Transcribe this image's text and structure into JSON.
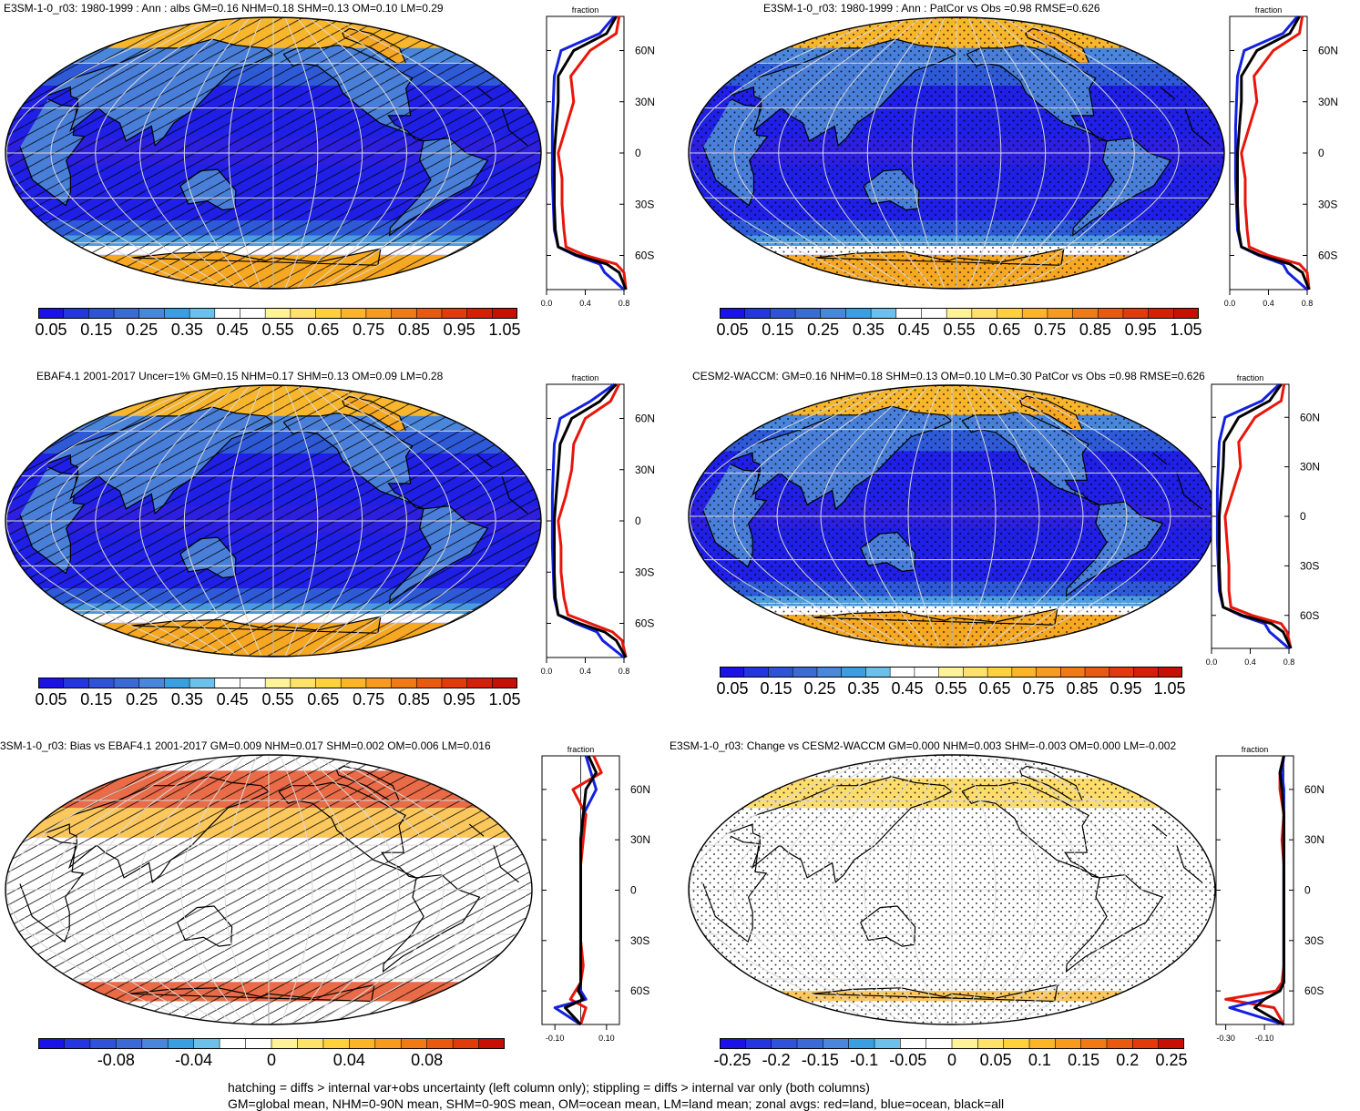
{
  "panels": [
    {
      "id": "p1",
      "title": "E3SM-1-0_r03: 1980-1999 : Ann : albs GM=0.16 NHM=0.18 SHM=0.13 OM=0.10 LM=0.29",
      "kind": "abs",
      "overlay": "hatch",
      "zonal_title": "fraction",
      "zonal_xticks": [
        "0.0",
        "0.4",
        "0.8"
      ]
    },
    {
      "id": "p2",
      "title": "E3SM-1-0_r03: 1980-1999 : Ann : PatCor vs Obs =0.98 RMSE=0.626",
      "kind": "abs",
      "overlay": "stipple",
      "zonal_title": "fraction",
      "zonal_xticks": [
        "0.0",
        "0.4",
        "0.8"
      ]
    },
    {
      "id": "p3",
      "title": "EBAF4.1 2001-2017 Uncer=1% GM=0.15 NHM=0.17 SHM=0.13 OM=0.09 LM=0.28",
      "kind": "abs",
      "overlay": "hatch",
      "zonal_title": "fraction",
      "zonal_xticks": [
        "0.0",
        "0.4",
        "0.8"
      ]
    },
    {
      "id": "p4",
      "title": "CESM2-WACCM: GM=0.16 NHM=0.18 SHM=0.13 OM=0.10 LM=0.30 PatCor vs Obs =0.98 RMSE=0.626",
      "kind": "abs",
      "overlay": "stipple",
      "zonal_title": "fraction",
      "zonal_xticks": [
        "0.0",
        "0.4",
        "0.8"
      ]
    },
    {
      "id": "p5",
      "title": "3SM-1-0_r03: Bias vs EBAF4.1 2001-2017 GM=0.009 NHM=0.017 SHM=0.002 OM=0.006 LM=0.016",
      "kind": "diff",
      "overlay": "hatch",
      "zonal_title": "fraction",
      "zonal_xticks": [
        "-0.10",
        "0.10"
      ]
    },
    {
      "id": "p6",
      "title": "E3SM-1-0_r03: Change vs CESM2-WACCM GM=0.000 NHM=0.003 SHM=-0.003 OM=0.000 LM=-0.002",
      "kind": "diff",
      "overlay": "stipple",
      "zonal_title": "fraction",
      "zonal_xticks": [
        "-0.30",
        "-0.10"
      ]
    }
  ],
  "lat_labels": [
    "60N",
    "30N",
    "0",
    "30S",
    "60S"
  ],
  "colorbars": {
    "abs": {
      "labels": [
        "0.05",
        "0.15",
        "0.25",
        "0.35",
        "0.45",
        "0.55",
        "0.65",
        "0.75",
        "0.85",
        "0.95",
        "1.05"
      ],
      "colors": [
        "#1b12e8",
        "#2436e0",
        "#2f52d8",
        "#3b6ad6",
        "#4a86db",
        "#3a9fe0",
        "#6cc0ea",
        "#ffffff",
        "#ffffff",
        "#fff39a",
        "#ffe26a",
        "#ffd23c",
        "#fbb527",
        "#f79a1e",
        "#f17a14",
        "#ea5a0e",
        "#e23a0a",
        "#d61f08",
        "#c80f06"
      ]
    },
    "bias": {
      "labels": [
        "-0.08",
        "-0.04",
        "0",
        "0.04",
        "0.08"
      ],
      "colors": [
        "#1b12e8",
        "#2436e0",
        "#2f52d8",
        "#3b6ad6",
        "#4a86db",
        "#3a9fe0",
        "#6cc0ea",
        "#ffffff",
        "#ffffff",
        "#fff39a",
        "#ffe26a",
        "#ffd23c",
        "#fbb527",
        "#f79a1e",
        "#f17a14",
        "#ea5a0e",
        "#e23a0a",
        "#c80f06"
      ]
    },
    "change": {
      "labels": [
        "-0.25",
        "-0.2",
        "-0.15",
        "-0.1",
        "-0.05",
        "0",
        "0.05",
        "0.1",
        "0.15",
        "0.2",
        "0.25"
      ],
      "colors": [
        "#1b12e8",
        "#2436e0",
        "#2f52d8",
        "#3b6ad6",
        "#4a86db",
        "#3a9fe0",
        "#6cc0ea",
        "#ffffff",
        "#ffffff",
        "#fff39a",
        "#ffe26a",
        "#ffd23c",
        "#fbb527",
        "#f79a1e",
        "#f17a14",
        "#ea5a0e",
        "#e23a0a",
        "#c80f06"
      ]
    }
  },
  "footer": {
    "line1": "hatching = diffs > internal var+obs uncertainty (left column only); stippling = diffs > internal var only (both columns)",
    "line2": "GM=global mean, NHM=0-90N mean, SHM=0-90S mean, OM=ocean mean, LM=land mean; zonal avgs: red=land, blue=ocean, black=all"
  },
  "chart_data": [
    {
      "type": "heatmap",
      "title": "E3SM-1-0_r03: 1980-1999 : Ann : albs GM=0.16 NHM=0.18 SHM=0.13 OM=0.10 LM=0.29",
      "colorbar_labels": [
        "0.05",
        "0.15",
        "0.25",
        "0.35",
        "0.45",
        "0.55",
        "0.65",
        "0.75",
        "0.85",
        "0.95",
        "1.05"
      ],
      "zonal": {
        "title": "fraction",
        "xlim": [
          0,
          0.8
        ],
        "lat": [
          80,
          70,
          60,
          45,
          30,
          15,
          0,
          -15,
          -30,
          -45,
          -55,
          -60,
          -65,
          -70,
          -80
        ],
        "land": [
          0.75,
          0.72,
          0.45,
          0.25,
          0.28,
          0.2,
          0.12,
          0.16,
          0.16,
          0.18,
          0.2,
          0.4,
          0.72,
          0.8,
          0.82
        ],
        "ocean": [
          0.7,
          0.55,
          0.15,
          0.08,
          0.07,
          0.06,
          0.06,
          0.06,
          0.07,
          0.08,
          0.12,
          0.3,
          0.55,
          0.6,
          0.8
        ],
        "all": [
          0.72,
          0.62,
          0.28,
          0.12,
          0.12,
          0.1,
          0.08,
          0.08,
          0.08,
          0.09,
          0.12,
          0.32,
          0.62,
          0.75,
          0.82
        ]
      }
    },
    {
      "type": "heatmap",
      "title": "E3SM-1-0_r03: 1980-1999 : Ann : PatCor vs Obs =0.98 RMSE=0.626",
      "colorbar_labels": [
        "0.05",
        "0.15",
        "0.25",
        "0.35",
        "0.45",
        "0.55",
        "0.65",
        "0.75",
        "0.85",
        "0.95",
        "1.05"
      ],
      "zonal": {
        "title": "fraction",
        "xlim": [
          0,
          0.8
        ],
        "lat": [
          80,
          70,
          60,
          45,
          30,
          15,
          0,
          -15,
          -30,
          -45,
          -55,
          -60,
          -65,
          -70,
          -80
        ],
        "land": [
          0.75,
          0.72,
          0.45,
          0.25,
          0.28,
          0.2,
          0.12,
          0.16,
          0.16,
          0.18,
          0.2,
          0.4,
          0.72,
          0.8,
          0.82
        ],
        "ocean": [
          0.7,
          0.55,
          0.15,
          0.08,
          0.07,
          0.06,
          0.06,
          0.06,
          0.07,
          0.08,
          0.12,
          0.3,
          0.55,
          0.6,
          0.8
        ],
        "all": [
          0.72,
          0.62,
          0.28,
          0.12,
          0.12,
          0.1,
          0.08,
          0.08,
          0.08,
          0.09,
          0.12,
          0.32,
          0.62,
          0.75,
          0.82
        ]
      }
    },
    {
      "type": "heatmap",
      "title": "EBAF4.1 2001-2017 Uncer=1% GM=0.15 NHM=0.17 SHM=0.13 OM=0.09 LM=0.28",
      "colorbar_labels": [
        "0.05",
        "0.15",
        "0.25",
        "0.35",
        "0.45",
        "0.55",
        "0.65",
        "0.75",
        "0.85",
        "0.95",
        "1.05"
      ],
      "zonal": {
        "title": "fraction",
        "xlim": [
          0,
          0.8
        ],
        "lat": [
          80,
          70,
          60,
          45,
          30,
          15,
          0,
          -15,
          -30,
          -45,
          -55,
          -60,
          -65,
          -70,
          -80
        ],
        "land": [
          0.75,
          0.66,
          0.4,
          0.28,
          0.26,
          0.2,
          0.12,
          0.15,
          0.15,
          0.18,
          0.22,
          0.45,
          0.68,
          0.78,
          0.82
        ],
        "ocean": [
          0.7,
          0.45,
          0.14,
          0.08,
          0.07,
          0.06,
          0.06,
          0.06,
          0.07,
          0.08,
          0.12,
          0.3,
          0.52,
          0.58,
          0.8
        ],
        "all": [
          0.72,
          0.55,
          0.26,
          0.14,
          0.12,
          0.1,
          0.08,
          0.08,
          0.08,
          0.09,
          0.12,
          0.34,
          0.6,
          0.72,
          0.82
        ]
      }
    },
    {
      "type": "heatmap",
      "title": "CESM2-WACCM: GM=0.16 NHM=0.18 SHM=0.13 OM=0.10 LM=0.30 PatCor vs Obs =0.98 RMSE=0.626",
      "colorbar_labels": [
        "0.05",
        "0.15",
        "0.25",
        "0.35",
        "0.45",
        "0.55",
        "0.65",
        "0.75",
        "0.85",
        "0.95",
        "1.05"
      ],
      "zonal": {
        "title": "fraction",
        "xlim": [
          0,
          0.8
        ],
        "lat": [
          80,
          70,
          60,
          45,
          30,
          15,
          0,
          -15,
          -30,
          -45,
          -55,
          -60,
          -65,
          -70,
          -80
        ],
        "land": [
          0.75,
          0.72,
          0.45,
          0.28,
          0.3,
          0.22,
          0.14,
          0.16,
          0.18,
          0.18,
          0.2,
          0.42,
          0.72,
          0.78,
          0.82
        ],
        "ocean": [
          0.7,
          0.52,
          0.14,
          0.08,
          0.07,
          0.06,
          0.06,
          0.06,
          0.07,
          0.08,
          0.12,
          0.3,
          0.55,
          0.6,
          0.8
        ],
        "all": [
          0.72,
          0.6,
          0.28,
          0.13,
          0.12,
          0.1,
          0.08,
          0.08,
          0.08,
          0.09,
          0.12,
          0.32,
          0.62,
          0.74,
          0.82
        ]
      }
    },
    {
      "type": "heatmap",
      "title": "3SM-1-0_r03: Bias vs EBAF4.1 2001-2017 GM=0.009 NHM=0.017 SHM=0.002 OM=0.006 LM=0.016",
      "colorbar_labels": [
        "-0.08",
        "-0.04",
        "0",
        "0.04",
        "0.08"
      ],
      "zonal": {
        "title": "fraction",
        "xlim": [
          -0.15,
          0.15
        ],
        "lat": [
          80,
          70,
          60,
          45,
          30,
          15,
          0,
          -15,
          -30,
          -45,
          -55,
          -60,
          -65,
          -70,
          -80
        ],
        "land": [
          0.05,
          0.08,
          -0.03,
          0.02,
          0.01,
          0.0,
          0.0,
          0.0,
          0.0,
          0.01,
          0.0,
          -0.02,
          -0.04,
          0.02,
          0.0
        ],
        "ocean": [
          0.02,
          0.04,
          0.06,
          0.01,
          0.0,
          0.0,
          0.0,
          0.0,
          0.0,
          0.0,
          0.0,
          0.0,
          0.02,
          -0.1,
          0.0
        ],
        "all": [
          0.03,
          0.06,
          0.02,
          0.01,
          0.0,
          0.0,
          0.0,
          0.0,
          0.0,
          0.0,
          0.0,
          -0.01,
          0.01,
          -0.06,
          0.0
        ]
      }
    },
    {
      "type": "heatmap",
      "title": "E3SM-1-0_r03: Change vs CESM2-WACCM GM=0.000 NHM=0.003 SHM=-0.003 OM=0.000 LM=-0.002",
      "colorbar_labels": [
        "-0.25",
        "-0.2",
        "-0.15",
        "-0.1",
        "-0.05",
        "0",
        "0.05",
        "0.1",
        "0.15",
        "0.2",
        "0.25"
      ],
      "zonal": {
        "title": "fraction",
        "xlim": [
          -0.35,
          0.05
        ],
        "lat": [
          80,
          70,
          60,
          45,
          30,
          15,
          0,
          -15,
          -30,
          -45,
          -55,
          -60,
          -65,
          -70,
          -80
        ],
        "land": [
          0.0,
          -0.02,
          -0.02,
          0.0,
          -0.01,
          0.0,
          0.0,
          0.0,
          0.0,
          0.0,
          -0.01,
          -0.04,
          -0.3,
          -0.05,
          0.0
        ],
        "ocean": [
          0.0,
          -0.01,
          0.0,
          0.0,
          0.0,
          0.0,
          0.0,
          0.0,
          0.0,
          0.0,
          0.0,
          -0.02,
          -0.1,
          -0.28,
          0.0
        ],
        "all": [
          0.0,
          -0.02,
          -0.01,
          0.0,
          0.0,
          0.0,
          0.0,
          0.0,
          0.0,
          0.0,
          0.0,
          -0.02,
          -0.1,
          -0.15,
          0.0
        ]
      }
    }
  ]
}
